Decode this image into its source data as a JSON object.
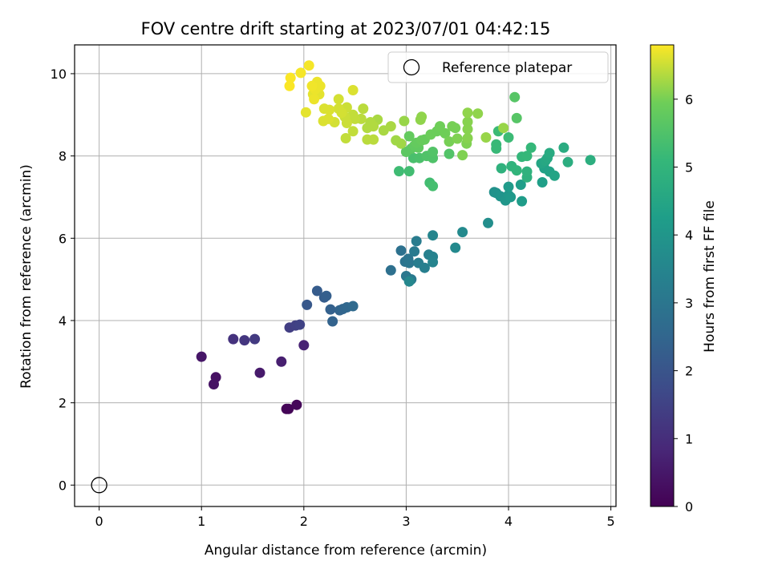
{
  "chart_data": {
    "type": "scatter",
    "title": "FOV centre drift starting at 2023/07/01 04:42:15",
    "xlabel": "Angular distance from reference (arcmin)",
    "ylabel": "Rotation from reference (arcmin)",
    "xlim": [
      -0.24,
      5.05
    ],
    "ylim": [
      -0.52,
      10.7
    ],
    "xticks": [
      "0",
      "1",
      "2",
      "3",
      "4",
      "5"
    ],
    "yticks": [
      "0",
      "2",
      "4",
      "6",
      "8",
      "10"
    ],
    "grid": true,
    "legend": {
      "position": "top-right",
      "entries": [
        "Reference platepar"
      ]
    },
    "reference_point": {
      "x": 0,
      "y": 0
    },
    "colorbar": {
      "label": "Hours from first FF file",
      "colormap": "viridis",
      "range": [
        0,
        6.8
      ],
      "ticks": [
        "0",
        "1",
        "2",
        "3",
        "4",
        "5",
        "6"
      ]
    },
    "points": [
      [
        1.83,
        1.85,
        0.05
      ],
      [
        1.85,
        1.85,
        0.08
      ],
      [
        1.93,
        1.95,
        0.12
      ],
      [
        1.14,
        2.62,
        0.35
      ],
      [
        1.12,
        2.45,
        0.38
      ],
      [
        1.0,
        3.12,
        0.45
      ],
      [
        1.57,
        2.73,
        0.55
      ],
      [
        1.78,
        3.0,
        0.65
      ],
      [
        2.0,
        3.4,
        0.75
      ],
      [
        1.31,
        3.55,
        1.1
      ],
      [
        1.42,
        3.52,
        1.2
      ],
      [
        1.52,
        3.55,
        1.3
      ],
      [
        1.86,
        3.83,
        1.4
      ],
      [
        1.92,
        3.88,
        1.45
      ],
      [
        1.96,
        3.9,
        1.5
      ],
      [
        2.03,
        4.38,
        2.1
      ],
      [
        2.13,
        4.72,
        2.2
      ],
      [
        2.2,
        4.56,
        2.25
      ],
      [
        2.22,
        4.6,
        2.3
      ],
      [
        2.26,
        4.27,
        2.35
      ],
      [
        2.28,
        3.98,
        2.4
      ],
      [
        2.35,
        4.25,
        2.45
      ],
      [
        2.38,
        4.28,
        2.5
      ],
      [
        2.42,
        4.32,
        2.55
      ],
      [
        2.48,
        4.35,
        2.6
      ],
      [
        2.85,
        5.22,
        2.8
      ],
      [
        2.95,
        5.7,
        2.85
      ],
      [
        2.99,
        5.43,
        2.9
      ],
      [
        3.02,
        5.5,
        2.95
      ],
      [
        3.03,
        5.4,
        3.0
      ],
      [
        3.0,
        5.08,
        3.05
      ],
      [
        3.05,
        5.0,
        3.1
      ],
      [
        3.08,
        5.68,
        3.15
      ],
      [
        3.1,
        5.93,
        3.2
      ],
      [
        3.12,
        5.4,
        3.25
      ],
      [
        3.18,
        5.28,
        3.3
      ],
      [
        3.22,
        5.6,
        3.35
      ],
      [
        3.26,
        5.55,
        3.4
      ],
      [
        3.26,
        5.42,
        3.45
      ],
      [
        3.26,
        6.07,
        3.5
      ],
      [
        3.03,
        4.95,
        3.55
      ],
      [
        3.48,
        5.77,
        3.6
      ],
      [
        3.55,
        6.15,
        3.65
      ],
      [
        3.8,
        6.37,
        3.75
      ],
      [
        3.86,
        7.12,
        3.85
      ],
      [
        3.88,
        7.1,
        3.9
      ],
      [
        3.92,
        7.02,
        3.95
      ],
      [
        3.97,
        6.92,
        4.0
      ],
      [
        4.0,
        7.05,
        4.05
      ],
      [
        4.02,
        7.0,
        4.1
      ],
      [
        4.0,
        7.25,
        4.15
      ],
      [
        4.13,
        6.9,
        4.2
      ],
      [
        4.12,
        7.3,
        4.25
      ],
      [
        4.33,
        7.36,
        4.3
      ],
      [
        4.35,
        7.7,
        4.35
      ],
      [
        4.4,
        7.62,
        4.4
      ],
      [
        4.45,
        7.52,
        4.45
      ],
      [
        4.32,
        7.82,
        4.5
      ],
      [
        4.36,
        7.88,
        4.55
      ],
      [
        4.38,
        7.95,
        4.6
      ],
      [
        4.4,
        8.07,
        4.65
      ],
      [
        4.54,
        8.2,
        4.7
      ],
      [
        4.58,
        7.85,
        4.75
      ],
      [
        4.8,
        7.9,
        4.8
      ],
      [
        4.18,
        7.48,
        4.85
      ],
      [
        4.18,
        7.62,
        4.9
      ],
      [
        3.93,
        7.7,
        4.9
      ],
      [
        4.03,
        7.75,
        4.95
      ],
      [
        4.08,
        7.65,
        5.0
      ],
      [
        4.13,
        7.98,
        5.05
      ],
      [
        4.18,
        8.0,
        5.1
      ],
      [
        4.22,
        8.2,
        5.1
      ],
      [
        3.88,
        8.28,
        5.15
      ],
      [
        3.88,
        8.18,
        5.15
      ],
      [
        3.9,
        8.6,
        5.2
      ],
      [
        4.0,
        8.45,
        5.2
      ],
      [
        2.93,
        7.63,
        5.25
      ],
      [
        3.03,
        7.63,
        5.3
      ],
      [
        3.23,
        7.35,
        5.3
      ],
      [
        3.26,
        7.27,
        5.35
      ],
      [
        3.07,
        7.95,
        5.4
      ],
      [
        3.13,
        7.95,
        5.45
      ],
      [
        3.2,
        8.0,
        5.5
      ],
      [
        3.26,
        7.95,
        5.5
      ],
      [
        3.26,
        8.1,
        5.55
      ],
      [
        3.42,
        8.05,
        5.55
      ],
      [
        4.08,
        8.92,
        5.6
      ],
      [
        4.06,
        9.43,
        5.6
      ],
      [
        3.0,
        8.1,
        5.7
      ],
      [
        3.05,
        8.18,
        5.7
      ],
      [
        3.08,
        8.25,
        5.75
      ],
      [
        3.12,
        8.2,
        5.75
      ],
      [
        3.03,
        8.48,
        5.8
      ],
      [
        3.1,
        8.32,
        5.8
      ],
      [
        3.15,
        8.38,
        5.85
      ],
      [
        3.18,
        8.4,
        5.85
      ],
      [
        3.24,
        8.52,
        5.9
      ],
      [
        3.3,
        8.6,
        5.9
      ],
      [
        3.33,
        8.72,
        5.95
      ],
      [
        3.38,
        8.55,
        5.95
      ],
      [
        3.42,
        8.35,
        6.0
      ],
      [
        3.45,
        8.72,
        6.0
      ],
      [
        3.48,
        8.68,
        6.0
      ],
      [
        3.5,
        8.42,
        6.05
      ],
      [
        3.55,
        8.02,
        6.05
      ],
      [
        3.59,
        8.3,
        6.05
      ],
      [
        3.6,
        8.43,
        6.1
      ],
      [
        3.6,
        8.65,
        6.1
      ],
      [
        3.6,
        8.83,
        6.1
      ],
      [
        3.6,
        9.05,
        6.15
      ],
      [
        3.7,
        9.03,
        6.15
      ],
      [
        3.14,
        8.88,
        6.15
      ],
      [
        3.15,
        8.95,
        6.15
      ],
      [
        2.98,
        8.85,
        6.2
      ],
      [
        3.78,
        8.45,
        6.2
      ],
      [
        3.95,
        8.68,
        6.2
      ],
      [
        2.9,
        8.38,
        6.25
      ],
      [
        2.95,
        8.3,
        6.25
      ],
      [
        2.85,
        8.72,
        6.3
      ],
      [
        2.78,
        8.62,
        6.3
      ],
      [
        2.72,
        8.88,
        6.3
      ],
      [
        2.65,
        8.82,
        6.35
      ],
      [
        2.68,
        8.72,
        6.35
      ],
      [
        2.62,
        8.68,
        6.35
      ],
      [
        2.62,
        8.4,
        6.4
      ],
      [
        2.68,
        8.4,
        6.4
      ],
      [
        2.56,
        8.9,
        6.4
      ],
      [
        2.58,
        9.15,
        6.4
      ],
      [
        2.48,
        8.6,
        6.45
      ],
      [
        2.5,
        8.9,
        6.45
      ],
      [
        2.41,
        8.43,
        6.45
      ],
      [
        2.48,
        9.0,
        6.45
      ],
      [
        2.42,
        8.8,
        6.5
      ],
      [
        2.4,
        8.95,
        6.5
      ],
      [
        2.42,
        9.18,
        6.5
      ],
      [
        2.34,
        9.38,
        6.55
      ],
      [
        2.3,
        8.82,
        6.55
      ],
      [
        2.34,
        9.15,
        6.55
      ],
      [
        2.37,
        9.05,
        6.55
      ],
      [
        2.25,
        9.12,
        6.6
      ],
      [
        2.2,
        9.15,
        6.6
      ],
      [
        2.19,
        8.85,
        6.6
      ],
      [
        2.24,
        8.9,
        6.6
      ],
      [
        2.48,
        9.6,
        6.6
      ],
      [
        2.02,
        9.06,
        6.65
      ],
      [
        2.09,
        9.5,
        6.65
      ],
      [
        2.15,
        9.5,
        6.65
      ],
      [
        2.1,
        9.38,
        6.7
      ],
      [
        2.11,
        9.62,
        6.7
      ],
      [
        2.13,
        9.8,
        6.7
      ],
      [
        2.16,
        9.7,
        6.7
      ],
      [
        2.08,
        9.7,
        6.72
      ],
      [
        1.97,
        10.02,
        6.75
      ],
      [
        2.05,
        10.2,
        6.75
      ],
      [
        1.87,
        9.9,
        6.78
      ],
      [
        1.86,
        9.7,
        6.78
      ]
    ]
  }
}
